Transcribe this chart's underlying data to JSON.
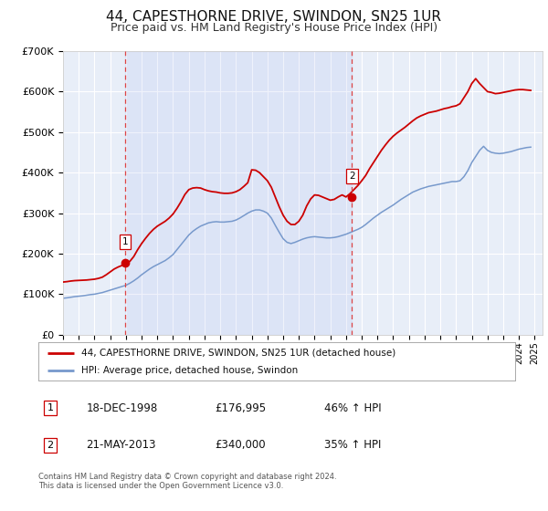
{
  "title": "44, CAPESTHORNE DRIVE, SWINDON, SN25 1UR",
  "subtitle": "Price paid vs. HM Land Registry's House Price Index (HPI)",
  "title_fontsize": 11,
  "subtitle_fontsize": 9,
  "ylim": [
    0,
    700000
  ],
  "yticks": [
    0,
    100000,
    200000,
    300000,
    400000,
    500000,
    600000,
    700000
  ],
  "ytick_labels": [
    "£0",
    "£100K",
    "£200K",
    "£300K",
    "£400K",
    "£500K",
    "£600K",
    "£700K"
  ],
  "bg_color": "#e8eef8",
  "outer_bg_color": "#ffffff",
  "grid_color": "#ffffff",
  "red_line_color": "#cc0000",
  "blue_line_color": "#7799cc",
  "marker_color": "#cc0000",
  "dashed_line_color": "#dd4444",
  "purchase1_x": 1998.96,
  "purchase1_y": 176995,
  "purchase1_label": "1",
  "purchase2_x": 2013.38,
  "purchase2_y": 340000,
  "purchase2_label": "2",
  "legend_label_red": "44, CAPESTHORNE DRIVE, SWINDON, SN25 1UR (detached house)",
  "legend_label_blue": "HPI: Average price, detached house, Swindon",
  "table_row1": [
    "1",
    "18-DEC-1998",
    "£176,995",
    "46% ↑ HPI"
  ],
  "table_row2": [
    "2",
    "21-MAY-2013",
    "£340,000",
    "35% ↑ HPI"
  ],
  "footer_line1": "Contains HM Land Registry data © Crown copyright and database right 2024.",
  "footer_line2": "This data is licensed under the Open Government Licence v3.0.",
  "xlim_start": 1995.0,
  "xlim_end": 2025.5,
  "xticks": [
    1995,
    1996,
    1997,
    1998,
    1999,
    2000,
    2001,
    2002,
    2003,
    2004,
    2005,
    2006,
    2007,
    2008,
    2009,
    2010,
    2011,
    2012,
    2013,
    2014,
    2015,
    2016,
    2017,
    2018,
    2019,
    2020,
    2021,
    2022,
    2023,
    2024,
    2025
  ],
  "hpi_x": [
    1995.0,
    1995.25,
    1995.5,
    1995.75,
    1996.0,
    1996.25,
    1996.5,
    1996.75,
    1997.0,
    1997.25,
    1997.5,
    1997.75,
    1998.0,
    1998.25,
    1998.5,
    1998.75,
    1999.0,
    1999.25,
    1999.5,
    1999.75,
    2000.0,
    2000.25,
    2000.5,
    2000.75,
    2001.0,
    2001.25,
    2001.5,
    2001.75,
    2002.0,
    2002.25,
    2002.5,
    2002.75,
    2003.0,
    2003.25,
    2003.5,
    2003.75,
    2004.0,
    2004.25,
    2004.5,
    2004.75,
    2005.0,
    2005.25,
    2005.5,
    2005.75,
    2006.0,
    2006.25,
    2006.5,
    2006.75,
    2007.0,
    2007.25,
    2007.5,
    2007.75,
    2008.0,
    2008.25,
    2008.5,
    2008.75,
    2009.0,
    2009.25,
    2009.5,
    2009.75,
    2010.0,
    2010.25,
    2010.5,
    2010.75,
    2011.0,
    2011.25,
    2011.5,
    2011.75,
    2012.0,
    2012.25,
    2012.5,
    2012.75,
    2013.0,
    2013.25,
    2013.5,
    2013.75,
    2014.0,
    2014.25,
    2014.5,
    2014.75,
    2015.0,
    2015.25,
    2015.5,
    2015.75,
    2016.0,
    2016.25,
    2016.5,
    2016.75,
    2017.0,
    2017.25,
    2017.5,
    2017.75,
    2018.0,
    2018.25,
    2018.5,
    2018.75,
    2019.0,
    2019.25,
    2019.5,
    2019.75,
    2020.0,
    2020.25,
    2020.5,
    2020.75,
    2021.0,
    2021.25,
    2021.5,
    2021.75,
    2022.0,
    2022.25,
    2022.5,
    2022.75,
    2023.0,
    2023.25,
    2023.5,
    2023.75,
    2024.0,
    2024.25,
    2024.5,
    2024.75
  ],
  "hpi_y": [
    90000,
    91000,
    92500,
    94000,
    95000,
    96000,
    97500,
    99000,
    100000,
    102000,
    104000,
    107000,
    110000,
    113000,
    116000,
    119000,
    122000,
    127000,
    133000,
    140000,
    148000,
    155000,
    162000,
    168000,
    173000,
    178000,
    183000,
    190000,
    198000,
    210000,
    222000,
    234000,
    246000,
    255000,
    262000,
    268000,
    272000,
    276000,
    278000,
    279000,
    278000,
    278000,
    279000,
    280000,
    283000,
    288000,
    294000,
    300000,
    305000,
    308000,
    308000,
    305000,
    300000,
    288000,
    270000,
    253000,
    237000,
    228000,
    225000,
    228000,
    232000,
    236000,
    239000,
    241000,
    242000,
    241000,
    240000,
    239000,
    239000,
    240000,
    242000,
    245000,
    248000,
    252000,
    256000,
    260000,
    265000,
    272000,
    280000,
    288000,
    295000,
    302000,
    308000,
    314000,
    320000,
    327000,
    334000,
    340000,
    346000,
    352000,
    356000,
    360000,
    363000,
    366000,
    368000,
    370000,
    372000,
    374000,
    376000,
    378000,
    378000,
    380000,
    390000,
    405000,
    425000,
    440000,
    455000,
    465000,
    455000,
    450000,
    448000,
    447000,
    448000,
    450000,
    452000,
    455000,
    458000,
    460000,
    462000,
    463000
  ],
  "red_x": [
    1995.0,
    1995.25,
    1995.5,
    1995.75,
    1996.0,
    1996.25,
    1996.5,
    1996.75,
    1997.0,
    1997.25,
    1997.5,
    1997.75,
    1998.0,
    1998.25,
    1998.5,
    1998.75,
    1999.0,
    1999.25,
    1999.5,
    1999.75,
    2000.0,
    2000.25,
    2000.5,
    2000.75,
    2001.0,
    2001.25,
    2001.5,
    2001.75,
    2002.0,
    2002.25,
    2002.5,
    2002.75,
    2003.0,
    2003.25,
    2003.5,
    2003.75,
    2004.0,
    2004.25,
    2004.5,
    2004.75,
    2005.0,
    2005.25,
    2005.5,
    2005.75,
    2006.0,
    2006.25,
    2006.5,
    2006.75,
    2007.0,
    2007.25,
    2007.5,
    2007.75,
    2008.0,
    2008.25,
    2008.5,
    2008.75,
    2009.0,
    2009.25,
    2009.5,
    2009.75,
    2010.0,
    2010.25,
    2010.5,
    2010.75,
    2011.0,
    2011.25,
    2011.5,
    2011.75,
    2012.0,
    2012.25,
    2012.5,
    2012.75,
    2013.0,
    2013.25,
    2013.5,
    2013.75,
    2014.0,
    2014.25,
    2014.5,
    2014.75,
    2015.0,
    2015.25,
    2015.5,
    2015.75,
    2016.0,
    2016.25,
    2016.5,
    2016.75,
    2017.0,
    2017.25,
    2017.5,
    2017.75,
    2018.0,
    2018.25,
    2018.5,
    2018.75,
    2019.0,
    2019.25,
    2019.5,
    2019.75,
    2020.0,
    2020.25,
    2020.5,
    2020.75,
    2021.0,
    2021.25,
    2021.5,
    2021.75,
    2022.0,
    2022.25,
    2022.5,
    2022.75,
    2023.0,
    2023.25,
    2023.5,
    2023.75,
    2024.0,
    2024.25,
    2024.5,
    2024.75
  ],
  "red_y": [
    130000,
    131000,
    132500,
    133500,
    134000,
    134500,
    135000,
    136000,
    137000,
    139000,
    142000,
    148000,
    155000,
    162000,
    167000,
    171000,
    176995,
    181000,
    193000,
    210000,
    225000,
    238000,
    250000,
    260000,
    268000,
    274000,
    280000,
    288000,
    298000,
    312000,
    328000,
    346000,
    358000,
    362000,
    363000,
    362000,
    358000,
    355000,
    353000,
    352000,
    350000,
    349000,
    349000,
    350000,
    353000,
    358000,
    366000,
    375000,
    407000,
    406000,
    400000,
    390000,
    380000,
    364000,
    340000,
    316000,
    295000,
    280000,
    272000,
    272000,
    280000,
    295000,
    318000,
    335000,
    345000,
    344000,
    340000,
    336000,
    332000,
    334000,
    340000,
    345000,
    340000,
    348000,
    358000,
    368000,
    380000,
    393000,
    410000,
    425000,
    440000,
    455000,
    468000,
    480000,
    490000,
    498000,
    505000,
    512000,
    520000,
    528000,
    535000,
    540000,
    544000,
    548000,
    550000,
    552000,
    555000,
    558000,
    560000,
    563000,
    565000,
    570000,
    585000,
    600000,
    620000,
    632000,
    620000,
    610000,
    600000,
    598000,
    595000,
    596000,
    598000,
    600000,
    602000,
    604000,
    605000,
    605000,
    604000,
    603000
  ]
}
